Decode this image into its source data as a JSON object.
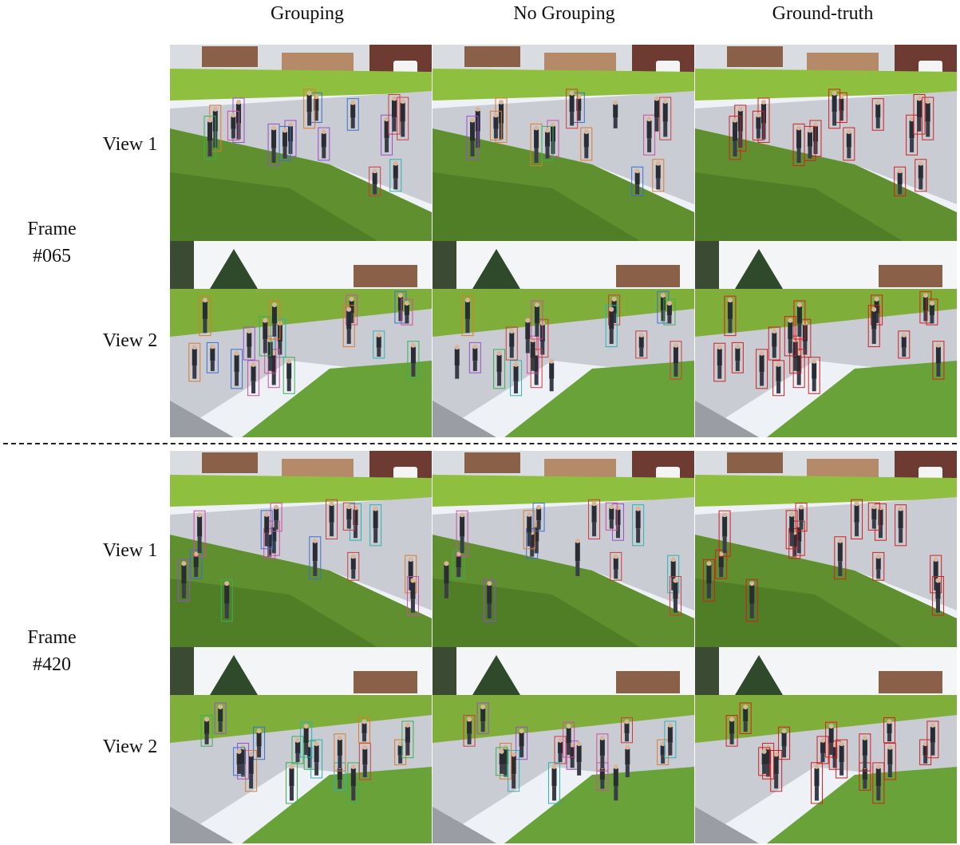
{
  "columns": [
    "Grouping",
    "No Grouping",
    "Ground-truth"
  ],
  "frames": [
    {
      "label_line1": "Frame",
      "label_line2": "#065",
      "views": [
        "View 1",
        "View 2"
      ]
    },
    {
      "label_line1": "Frame",
      "label_line2": "#420",
      "views": [
        "View 1",
        "View 2"
      ]
    }
  ],
  "palette": {
    "grass": "#5f8f2f",
    "grass_dark": "#3f6d1f",
    "path": "#c9ccd2",
    "sky": "#eef2f6",
    "building": "#8a6048",
    "person": "#2a2c33",
    "box_colors_predicted": [
      "#d23a3a",
      "#3a6fd2",
      "#3ab04f",
      "#9b4dca",
      "#e07a2a",
      "#2ab3b3",
      "#d24ca0"
    ],
    "box_color_ground_truth": "#d41f1f"
  }
}
